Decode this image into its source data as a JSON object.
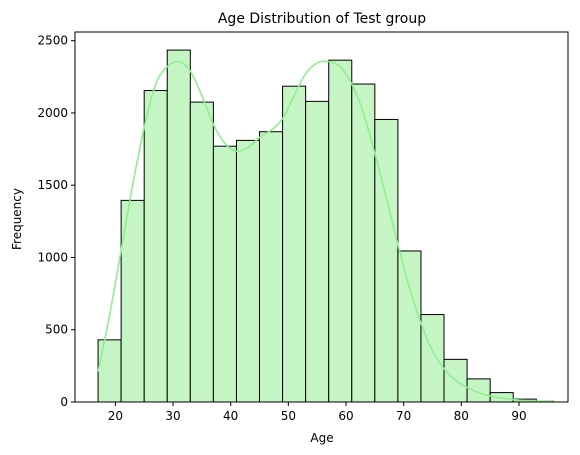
{
  "chart_data": {
    "type": "bar",
    "title": "Age Distribution of Test group",
    "xlabel": "Age",
    "ylabel": "Frequency",
    "xlim": [
      13,
      98.5
    ],
    "ylim": [
      0,
      2560
    ],
    "x_ticks": [
      20,
      30,
      40,
      50,
      60,
      70,
      80,
      90
    ],
    "y_ticks": [
      0,
      500,
      1000,
      1500,
      2000,
      2500
    ],
    "bin_edges": [
      17,
      21,
      25,
      29,
      33,
      37,
      41,
      45,
      49,
      53,
      57,
      61,
      65,
      69,
      73,
      77,
      81,
      85,
      89,
      93,
      96
    ],
    "values": [
      430,
      1395,
      2155,
      2435,
      2075,
      1770,
      1810,
      1870,
      2185,
      2080,
      2365,
      2200,
      1955,
      1045,
      605,
      295,
      160,
      65,
      20,
      5
    ],
    "bar_color": "#c5f5c5",
    "edge_color": "#000000",
    "kde_color": "#90ee90",
    "kde": {
      "x": [
        17,
        19,
        21,
        23,
        25,
        27,
        29,
        31,
        33,
        35,
        37,
        39,
        41,
        43,
        45,
        47,
        49,
        51,
        53,
        55,
        57,
        59,
        61,
        63,
        65,
        67,
        69,
        71,
        73,
        75,
        77,
        79,
        81,
        83,
        85,
        87,
        89,
        91,
        93,
        96
      ],
      "y": [
        210,
        600,
        1050,
        1500,
        1900,
        2200,
        2320,
        2355,
        2290,
        2120,
        1920,
        1790,
        1735,
        1760,
        1830,
        1880,
        1960,
        2120,
        2270,
        2345,
        2355,
        2320,
        2200,
        2000,
        1720,
        1410,
        1090,
        790,
        545,
        355,
        230,
        150,
        100,
        65,
        42,
        27,
        17,
        10,
        5,
        2
      ]
    },
    "grid": false,
    "legend": "none"
  }
}
